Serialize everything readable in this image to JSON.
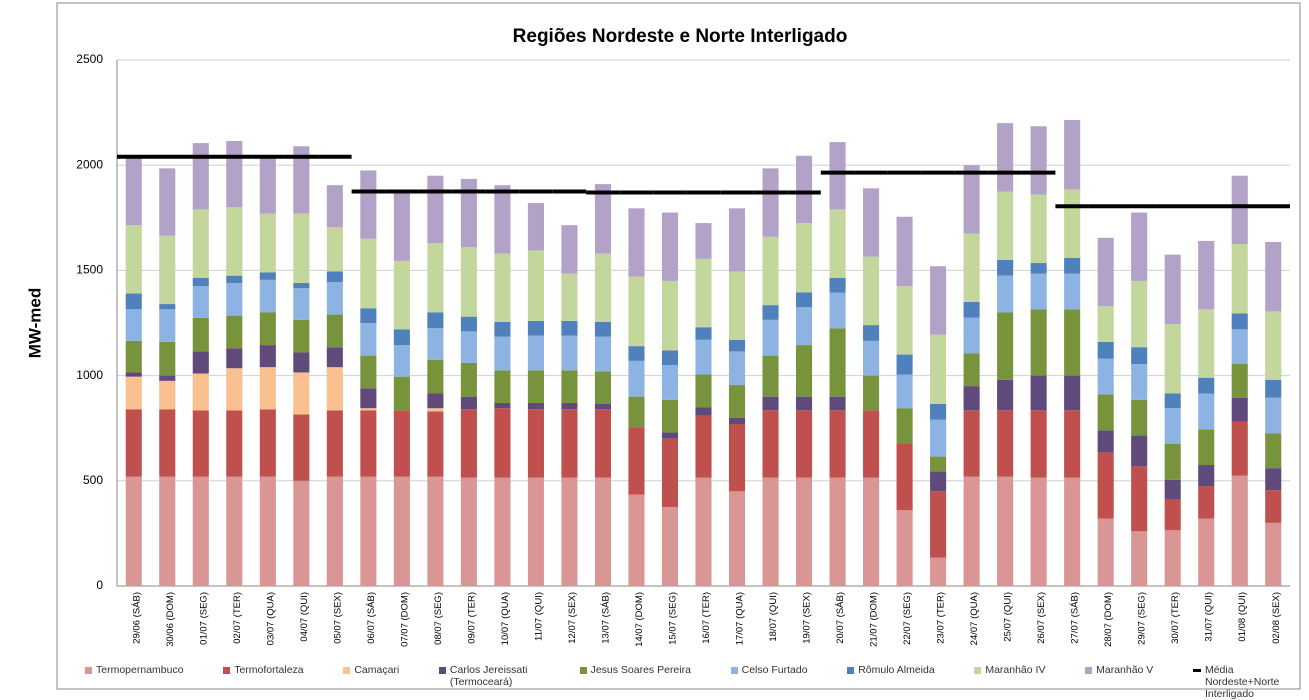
{
  "chart_data": {
    "type": "bar",
    "stacked": true,
    "title": "Regiões Nordeste e Norte Interligado",
    "y_label": "MW-med",
    "categories": [
      "29/06 (SÁB)",
      "30/06 (DOM)",
      "01/07 (SEG)",
      "02/07 (TER)",
      "03/07 (QUA)",
      "04/07 (QUI)",
      "05/07 (SEX)",
      "06/07 (SÁB)",
      "07/07 (DOM)",
      "08/07 (SEG)",
      "09/07 (TER)",
      "10/07 (QUA)",
      "11/07 (QUI)",
      "12/07 (SEX)",
      "13/07 (SÁB)",
      "14/07 (DOM)",
      "15/07 (SEG)",
      "16/07 (TER)",
      "17/07 (QUA)",
      "18/07 (QUI)",
      "19/07 (SEX)",
      "20/07 (SÁB)",
      "21/07 (DOM)",
      "22/07 (SEG)",
      "23/07 (TER)",
      "24/07 (QUA)",
      "25/07 (QUI)",
      "26/07 (SEX)",
      "27/07 (SÁB)",
      "28/07 (DOM)",
      "29/07 (SEG)",
      "30/07 (TER)",
      "31/07 (QUI)",
      "01/08 (QUI)",
      "02/08 (SEX)"
    ],
    "ylim": [
      0,
      2500
    ],
    "yticks": [
      0,
      500,
      1000,
      1500,
      2000,
      2500
    ],
    "grid": true,
    "series": [
      {
        "name": "Termopernambuco",
        "color": "#d99694",
        "values": [
          520,
          520,
          520,
          520,
          520,
          500,
          520,
          520,
          520,
          520,
          515,
          515,
          515,
          515,
          515,
          435,
          375,
          515,
          450,
          515,
          515,
          515,
          515,
          360,
          135,
          520,
          520,
          515,
          515,
          320,
          260,
          265,
          320,
          525,
          300
        ]
      },
      {
        "name": "Termofortaleza",
        "color": "#c0504d",
        "values": [
          320,
          320,
          315,
          315,
          320,
          315,
          315,
          315,
          315,
          310,
          325,
          330,
          325,
          325,
          325,
          320,
          325,
          295,
          320,
          320,
          320,
          320,
          320,
          315,
          315,
          315,
          315,
          320,
          320,
          315,
          310,
          145,
          155,
          255,
          155
        ]
      },
      {
        "name": "Camaçari",
        "color": "#fac090",
        "values": [
          155,
          135,
          175,
          200,
          200,
          200,
          205,
          10,
          0,
          15,
          0,
          0,
          0,
          0,
          0,
          0,
          0,
          0,
          0,
          0,
          0,
          0,
          0,
          0,
          0,
          0,
          0,
          0,
          0,
          0,
          0,
          0,
          0,
          0,
          0
        ]
      },
      {
        "name": "Carlos Jereissati (Termoceará)",
        "color": "#604a7b",
        "values": [
          20,
          25,
          105,
          95,
          105,
          95,
          95,
          95,
          0,
          70,
          60,
          25,
          30,
          30,
          25,
          0,
          30,
          40,
          30,
          65,
          65,
          65,
          0,
          0,
          95,
          115,
          145,
          165,
          165,
          105,
          145,
          95,
          100,
          115,
          105
        ]
      },
      {
        "name": "Jesus Soares Pereira",
        "color": "#77933c",
        "values": [
          150,
          160,
          160,
          155,
          155,
          155,
          155,
          155,
          160,
          160,
          160,
          155,
          155,
          155,
          155,
          145,
          155,
          155,
          155,
          195,
          245,
          325,
          165,
          170,
          70,
          155,
          320,
          315,
          315,
          170,
          170,
          170,
          170,
          160,
          165
        ]
      },
      {
        "name": "Celso Furtado",
        "color": "#8db3e2",
        "values": [
          150,
          155,
          150,
          155,
          155,
          150,
          155,
          155,
          150,
          150,
          150,
          160,
          165,
          165,
          165,
          170,
          165,
          165,
          160,
          170,
          180,
          170,
          165,
          160,
          175,
          170,
          175,
          170,
          170,
          170,
          170,
          170,
          170,
          165,
          170
        ]
      },
      {
        "name": "Rômulo Almeida",
        "color": "#4f81bd",
        "values": [
          75,
          25,
          40,
          35,
          35,
          25,
          50,
          70,
          75,
          75,
          70,
          70,
          70,
          70,
          70,
          70,
          70,
          60,
          55,
          70,
          70,
          70,
          75,
          95,
          75,
          75,
          75,
          50,
          75,
          80,
          80,
          70,
          75,
          75,
          85
        ]
      },
      {
        "name": "Maranhão IV",
        "color": "#c3d69b",
        "values": [
          325,
          325,
          325,
          325,
          280,
          330,
          210,
          330,
          325,
          330,
          330,
          325,
          335,
          225,
          325,
          330,
          330,
          325,
          325,
          325,
          330,
          325,
          325,
          325,
          330,
          325,
          325,
          325,
          325,
          170,
          315,
          330,
          325,
          330,
          325
        ]
      },
      {
        "name": "Maranhão V",
        "color": "#b3a2c7",
        "values": [
          320,
          320,
          315,
          315,
          275,
          320,
          200,
          325,
          325,
          320,
          325,
          325,
          225,
          230,
          330,
          325,
          325,
          170,
          300,
          325,
          320,
          320,
          325,
          330,
          325,
          325,
          325,
          325,
          330,
          325,
          325,
          330,
          325,
          325,
          330
        ]
      }
    ],
    "average_line": {
      "name": "Média Nordeste+Norte Interligado",
      "color": "#000000",
      "values": [
        2040,
        2040,
        2040,
        2040,
        2040,
        2040,
        2040,
        1875,
        1875,
        1875,
        1875,
        1875,
        1875,
        1875,
        1870,
        1870,
        1870,
        1870,
        1870,
        1870,
        1870,
        1965,
        1965,
        1965,
        1965,
        1965,
        1965,
        1965,
        1805,
        1805,
        1805,
        1805,
        1805,
        1805,
        1805
      ]
    }
  }
}
